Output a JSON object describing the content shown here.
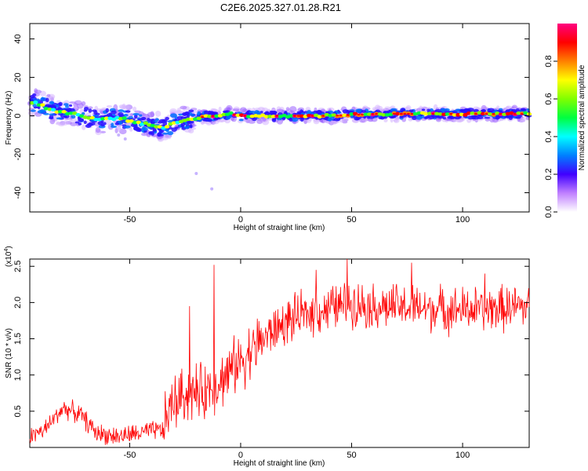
{
  "title": "C2E6.2025.327.01.28.R21",
  "chart_data": [
    {
      "type": "heatmap",
      "name": "spectrogram",
      "xlabel": "Height of straight line (km)",
      "ylabel": "Frequency (Hz)",
      "xlim": [
        -95,
        130
      ],
      "ylim": [
        -50,
        48
      ],
      "xticks": [
        -50,
        0,
        50,
        100
      ],
      "yticks": [
        -40,
        -20,
        0,
        20,
        40
      ],
      "ridge": [
        {
          "x": -93,
          "y": 7
        },
        {
          "x": -85,
          "y": 3
        },
        {
          "x": -75,
          "y": 1
        },
        {
          "x": -65,
          "y": -2
        },
        {
          "x": -55,
          "y": -1
        },
        {
          "x": -48,
          "y": -3
        },
        {
          "x": -40,
          "y": -5
        },
        {
          "x": -34,
          "y": -6
        },
        {
          "x": -28,
          "y": -3
        },
        {
          "x": -20,
          "y": -1
        },
        {
          "x": -12,
          "y": 0
        },
        {
          "x": -5,
          "y": 1
        },
        {
          "x": 0,
          "y": 0
        },
        {
          "x": 20,
          "y": 0
        },
        {
          "x": 40,
          "y": 0
        },
        {
          "x": 60,
          "y": 1
        },
        {
          "x": 80,
          "y": 1
        },
        {
          "x": 100,
          "y": 1
        },
        {
          "x": 120,
          "y": 1
        },
        {
          "x": 130,
          "y": 1
        }
      ],
      "colorbar": {
        "label": "Normalized spectral amplitude",
        "range": [
          0.0,
          1.0
        ],
        "ticks": [
          "0.0",
          "0.2",
          "0.4",
          "0.6",
          "0.8"
        ],
        "colors": [
          "#ffffff",
          "#c080ff",
          "#4000ff",
          "#0080ff",
          "#00ffff",
          "#00ff40",
          "#80ff00",
          "#ffff00",
          "#ff8000",
          "#ff0000",
          "#ff0080"
        ]
      }
    },
    {
      "type": "line",
      "name": "snr",
      "xlabel": "Height of straight line (km)",
      "ylabel": "SNR (10 * v/v)",
      "yscale_label": "(x10",
      "yscale_exp": "4",
      "yscale_close": ")",
      "xlim": [
        -95,
        130
      ],
      "ylim": [
        0,
        2.6
      ],
      "xticks": [
        -50,
        0,
        50,
        100
      ],
      "yticks": [
        0.5,
        1.0,
        1.5,
        2.0,
        2.5
      ],
      "ytick_labels": [
        "0.5",
        "1.0",
        "1.5",
        "2.0",
        "2.5"
      ],
      "trend": [
        {
          "x": -95,
          "y": 0.15
        },
        {
          "x": -88,
          "y": 0.25
        },
        {
          "x": -80,
          "y": 0.55
        },
        {
          "x": -72,
          "y": 0.45
        },
        {
          "x": -65,
          "y": 0.2
        },
        {
          "x": -55,
          "y": 0.15
        },
        {
          "x": -45,
          "y": 0.2
        },
        {
          "x": -35,
          "y": 0.25
        },
        {
          "x": -32,
          "y": 0.55
        },
        {
          "x": -25,
          "y": 0.75
        },
        {
          "x": -18,
          "y": 0.75
        },
        {
          "x": -10,
          "y": 0.9
        },
        {
          "x": 0,
          "y": 1.2
        },
        {
          "x": 10,
          "y": 1.5
        },
        {
          "x": 20,
          "y": 1.72
        },
        {
          "x": 30,
          "y": 1.85
        },
        {
          "x": 40,
          "y": 1.92
        },
        {
          "x": 50,
          "y": 2.0
        },
        {
          "x": 60,
          "y": 1.95
        },
        {
          "x": 80,
          "y": 1.92
        },
        {
          "x": 100,
          "y": 1.9
        },
        {
          "x": 120,
          "y": 1.92
        },
        {
          "x": 130,
          "y": 1.95
        }
      ],
      "spikes": [
        {
          "x": -23,
          "y": 1.95
        },
        {
          "x": -12,
          "y": 2.52
        },
        {
          "x": 48,
          "y": 2.6
        },
        {
          "x": 77,
          "y": 2.55
        },
        {
          "x": 34,
          "y": 2.45
        },
        {
          "x": 110,
          "y": 2.4
        }
      ],
      "color": "#ff0000"
    }
  ]
}
